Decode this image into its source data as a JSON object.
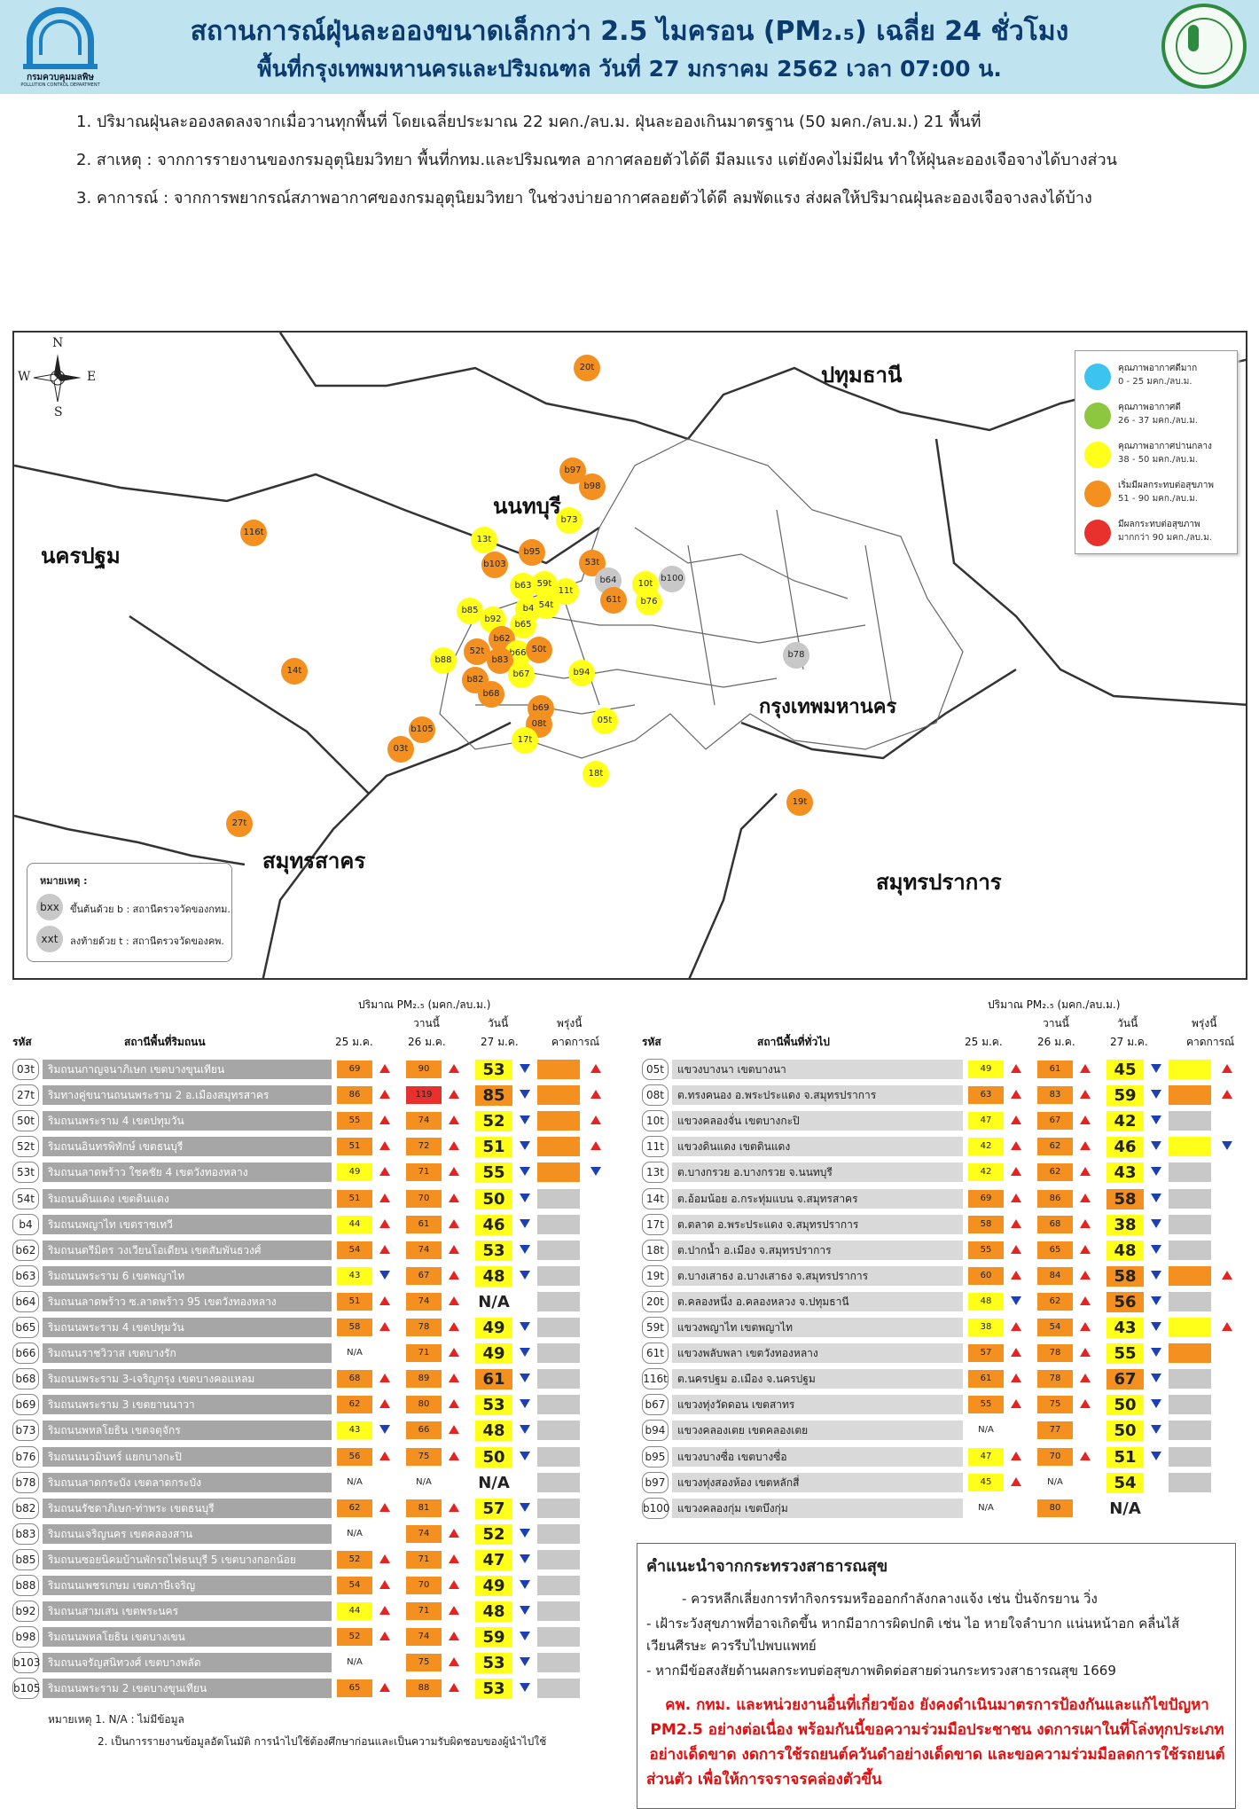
{
  "header": {
    "title_line1": "สถานการณ์ฝุ่นละอองขนาดเล็กกว่า 2.5 ไมครอน (PM₂.₅) เฉลี่ย 24 ชั่วโมง",
    "title_line2": "พื้นที่กรุงเทพมหานครและปริมณฑล วันที่ 27 มกราคม 2562 เวลา 07:00 น.",
    "pcd_logo_name": "กรมควบคุมมลพิษ",
    "pcd_logo_sub": "POLLUTION CONTROL DEPARTMENT"
  },
  "notes": [
    "1. ปริมาณฝุ่นละอองลดลงจากเมื่อวานทุกพื้นที่ โดยเฉลี่ยประมาณ 22 มคก./ลบ.ม. ฝุ่นละอองเกินมาตรฐาน (50 มคก./ลบ.ม.) 21 พื้นที่",
    "2. สาเหตุ : จากการรายงานของกรมอุตุนิยมวิทยา พื้นที่กทม.และปริมณฑล อากาศลอยตัวได้ดี มีลมแรง แต่ยังคงไม่มีฝน ทำให้ฝุ่นละอองเจือจางได้บางส่วน",
    "3. คาการณ์ : จากการพยากรณ์สภาพอากาศของกรมอุตุนิยมวิทยา ในช่วงบ่ายอากาศลอยตัวได้ดี ลมพัดแรง ส่งผลให้ปริมาณฝุ่นละอองเจือจางลงได้บ้าง"
  ],
  "map": {
    "compass": {
      "n": "N",
      "s": "S",
      "e": "E",
      "w": "W"
    },
    "provinces": {
      "pathum": "ปทุมธานี",
      "nonthaburi": "นนทบุรี",
      "nakhonpathom": "นครปฐม",
      "bangkok": "กรุงเทพมหานคร",
      "samutsakhon": "สมุทรสาคร",
      "samutprakan": "สมุทรปราการ"
    },
    "legend": [
      {
        "t1": "คุณภาพอากาศดีมาก",
        "t2": "0 - 25 มคก./ลบ.ม.",
        "color": "#3cc3f0"
      },
      {
        "t1": "คุณภาพอากาศดี",
        "t2": "26 - 37 มคก./ลบ.ม.",
        "color": "#8dc63f"
      },
      {
        "t1": "คุณภาพอากาศปานกลาง",
        "t2": "38 - 50 มคก./ลบ.ม.",
        "color": "#ffff1a"
      },
      {
        "t1": "เริ่มมีผลกระทบต่อสุขภาพ",
        "t2": "51 - 90 มคก./ลบ.ม.",
        "color": "#f4901f"
      },
      {
        "t1": "มีผลกระทบต่อสุขภาพ",
        "t2": "มากกว่า 90 มคก./ลบ.ม.",
        "color": "#e8302c"
      }
    ],
    "notebox": {
      "heading": "หมายเหตุ :",
      "b_icon": "bxx",
      "b_text": "ขึ้นต้นด้วย b : สถานีตรวจวัดของกทม.",
      "t_icon": "xxt",
      "t_text": "ลงท้ายด้วย t : สถานีตรวจวัดของคพ."
    },
    "stations": [
      {
        "id": "20t",
        "level": "O"
      },
      {
        "id": "b97",
        "level": "O"
      },
      {
        "id": "b98",
        "level": "O"
      },
      {
        "id": "b73",
        "level": "Y"
      },
      {
        "id": "116t",
        "level": "O"
      },
      {
        "id": "13t",
        "level": "Y"
      },
      {
        "id": "b95",
        "level": "O"
      },
      {
        "id": "b103",
        "level": "O"
      },
      {
        "id": "53t",
        "level": "O"
      },
      {
        "id": "b64",
        "level": "G"
      },
      {
        "id": "10t",
        "level": "Y"
      },
      {
        "id": "b100",
        "level": "G"
      },
      {
        "id": "b63",
        "level": "Y"
      },
      {
        "id": "59t",
        "level": "Y"
      },
      {
        "id": "11t",
        "level": "Y"
      },
      {
        "id": "61t",
        "level": "O"
      },
      {
        "id": "b76",
        "level": "Y"
      },
      {
        "id": "b85",
        "level": "Y"
      },
      {
        "id": "b4",
        "level": "Y"
      },
      {
        "id": "54t",
        "level": "Y"
      },
      {
        "id": "b92",
        "level": "Y"
      },
      {
        "id": "b65",
        "level": "Y"
      },
      {
        "id": "b62",
        "level": "O"
      },
      {
        "id": "52t",
        "level": "O"
      },
      {
        "id": "b66",
        "level": "Y"
      },
      {
        "id": "50t",
        "level": "O"
      },
      {
        "id": "b88",
        "level": "Y"
      },
      {
        "id": "b83",
        "level": "O"
      },
      {
        "id": "b78",
        "level": "G"
      },
      {
        "id": "b94",
        "level": "Y"
      },
      {
        "id": "b67",
        "level": "Y"
      },
      {
        "id": "14t",
        "level": "O"
      },
      {
        "id": "b82",
        "level": "O"
      },
      {
        "id": "b68",
        "level": "O"
      },
      {
        "id": "b69",
        "level": "O"
      },
      {
        "id": "08t",
        "level": "O"
      },
      {
        "id": "05t",
        "level": "Y"
      },
      {
        "id": "b105",
        "level": "O"
      },
      {
        "id": "17t",
        "level": "Y"
      },
      {
        "id": "03t",
        "level": "O"
      },
      {
        "id": "18t",
        "level": "Y"
      },
      {
        "id": "19t",
        "level": "O"
      },
      {
        "id": "27t",
        "level": "O"
      }
    ]
  },
  "table_header": {
    "amount": "ปริมาณ PM₂.₅ (มคก./ลบ.ม.)",
    "code": "รหัส",
    "left_station": "สถานีพื้นที่ริมถนน",
    "right_station": "สถานีพื้นที่ทั่วไป",
    "d25": "25 ม.ค.",
    "yesterday": "วานนี้",
    "d26": "26 ม.ค.",
    "today": "วันนี้",
    "d27": "27 ม.ค.",
    "tomorrow": "พรุ่งนี้",
    "forecast": "คาดการณ์"
  },
  "left_rows": [
    {
      "code": "03t",
      "name": "ริมถนนกาญจนาภิเษก เขตบางขุนเทียน",
      "v25": "69",
      "c25": "O",
      "t25": "up",
      "v26": "90",
      "c26": "O",
      "t26": "up",
      "v27": "53",
      "c27": "Y",
      "t27": "dn",
      "fc": "O",
      "ft": "up"
    },
    {
      "code": "27t",
      "name": "ริมทางคู่ขนานถนนพระราม 2 อ.เมืองสมุทรสาคร",
      "v25": "86",
      "c25": "O",
      "t25": "up",
      "v26": "119",
      "c26": "R",
      "t26": "up",
      "v27": "85",
      "c27": "O",
      "t27": "dn",
      "fc": "O",
      "ft": "up"
    },
    {
      "code": "50t",
      "name": "ริมถนนพระราม 4 เขตปทุมวัน",
      "v25": "55",
      "c25": "O",
      "t25": "up",
      "v26": "74",
      "c26": "O",
      "t26": "up",
      "v27": "52",
      "c27": "Y",
      "t27": "dn",
      "fc": "O",
      "ft": "up"
    },
    {
      "code": "52t",
      "name": "ริมถนนอินทรพิทักษ์ เขตธนบุรี",
      "v25": "51",
      "c25": "O",
      "t25": "up",
      "v26": "72",
      "c26": "O",
      "t26": "up",
      "v27": "51",
      "c27": "Y",
      "t27": "dn",
      "fc": "O",
      "ft": "up"
    },
    {
      "code": "53t",
      "name": "ริมถนนลาดพร้าว ใชคชัย 4 เขตวังทองหลาง",
      "v25": "49",
      "c25": "Y",
      "t25": "up",
      "v26": "71",
      "c26": "O",
      "t26": "up",
      "v27": "55",
      "c27": "Y",
      "t27": "dn",
      "fc": "O",
      "ft": "dn"
    },
    {
      "code": "54t",
      "name": "ริมถนนดินแดง เขตดินแดง",
      "v25": "51",
      "c25": "O",
      "t25": "up",
      "v26": "70",
      "c26": "O",
      "t26": "up",
      "v27": "50",
      "c27": "Y",
      "t27": "dn",
      "fc": "G",
      "ft": ""
    },
    {
      "code": "b4",
      "name": "ริมถนนพญาไท เขตราชเทวี",
      "v25": "44",
      "c25": "Y",
      "t25": "up",
      "v26": "61",
      "c26": "O",
      "t26": "up",
      "v27": "46",
      "c27": "Y",
      "t27": "dn",
      "fc": "G",
      "ft": ""
    },
    {
      "code": "b62",
      "name": "ริมถนนตรีมิตร วงเวียนโอเดียน เขตสัมพันธวงศ์",
      "v25": "54",
      "c25": "O",
      "t25": "up",
      "v26": "74",
      "c26": "O",
      "t26": "up",
      "v27": "53",
      "c27": "Y",
      "t27": "dn",
      "fc": "G",
      "ft": ""
    },
    {
      "code": "b63",
      "name": "ริมถนนพระราม 6 เขตพญาไท",
      "v25": "43",
      "c25": "Y",
      "t25": "dn",
      "v26": "67",
      "c26": "O",
      "t26": "up",
      "v27": "48",
      "c27": "Y",
      "t27": "dn",
      "fc": "G",
      "ft": ""
    },
    {
      "code": "b64",
      "name": "ริมถนนลาดพร้าว ซ.ลาดพร้าว 95 เขตวังทองหลาง",
      "v25": "51",
      "c25": "O",
      "t25": "up",
      "v26": "74",
      "c26": "O",
      "t26": "up",
      "v27": "N/A",
      "c27": "W",
      "t27": "",
      "fc": "G",
      "ft": ""
    },
    {
      "code": "b65",
      "name": "ริมถนนพระราม 4 เขตปทุมวัน",
      "v25": "58",
      "c25": "O",
      "t25": "up",
      "v26": "78",
      "c26": "O",
      "t26": "up",
      "v27": "49",
      "c27": "Y",
      "t27": "dn",
      "fc": "G",
      "ft": ""
    },
    {
      "code": "b66",
      "name": "ริมถนนราชวิวาส เขตบางรัก",
      "v25": "N/A",
      "c25": "W",
      "t25": "",
      "v26": "71",
      "c26": "O",
      "t26": "up",
      "v27": "49",
      "c27": "Y",
      "t27": "dn",
      "fc": "G",
      "ft": ""
    },
    {
      "code": "b68",
      "name": "ริมถนนพระราม 3-เจริญกรุง เขตบางคอแหลม",
      "v25": "68",
      "c25": "O",
      "t25": "up",
      "v26": "89",
      "c26": "O",
      "t26": "up",
      "v27": "61",
      "c27": "O",
      "t27": "dn",
      "fc": "G",
      "ft": ""
    },
    {
      "code": "b69",
      "name": "ริมถนนพระราม 3 เขตยานนาวา",
      "v25": "62",
      "c25": "O",
      "t25": "up",
      "v26": "80",
      "c26": "O",
      "t26": "up",
      "v27": "53",
      "c27": "Y",
      "t27": "dn",
      "fc": "G",
      "ft": ""
    },
    {
      "code": "b73",
      "name": "ริมถนนพหลโยธิน เขตจตุจักร",
      "v25": "43",
      "c25": "Y",
      "t25": "dn",
      "v26": "66",
      "c26": "O",
      "t26": "up",
      "v27": "48",
      "c27": "Y",
      "t27": "dn",
      "fc": "G",
      "ft": ""
    },
    {
      "code": "b76",
      "name": "ริมถนนนวมินทร์ แยกบางกะปิ",
      "v25": "56",
      "c25": "O",
      "t25": "up",
      "v26": "75",
      "c26": "O",
      "t26": "up",
      "v27": "50",
      "c27": "Y",
      "t27": "dn",
      "fc": "G",
      "ft": ""
    },
    {
      "code": "b78",
      "name": "ริมถนนลาดกระบัง เขตลาดกระบัง",
      "v25": "N/A",
      "c25": "W",
      "t25": "",
      "v26": "N/A",
      "c26": "W",
      "t26": "",
      "v27": "N/A",
      "c27": "W",
      "t27": "",
      "fc": "G",
      "ft": ""
    },
    {
      "code": "b82",
      "name": "ริมถนนรัชดาภิเษก-ท่าพระ เขตธนบุรี",
      "v25": "62",
      "c25": "O",
      "t25": "up",
      "v26": "81",
      "c26": "O",
      "t26": "up",
      "v27": "57",
      "c27": "Y",
      "t27": "dn",
      "fc": "G",
      "ft": ""
    },
    {
      "code": "b83",
      "name": "ริมถนนเจริญนคร เขตคลองสาน",
      "v25": "N/A",
      "c25": "W",
      "t25": "",
      "v26": "74",
      "c26": "O",
      "t26": "up",
      "v27": "52",
      "c27": "Y",
      "t27": "dn",
      "fc": "G",
      "ft": ""
    },
    {
      "code": "b85",
      "name": "ริมถนนซอยนิคมบ้านพักรถไฟธนบุรี 5 เขตบางกอกน้อย",
      "v25": "52",
      "c25": "O",
      "t25": "up",
      "v26": "71",
      "c26": "O",
      "t26": "up",
      "v27": "47",
      "c27": "Y",
      "t27": "dn",
      "fc": "G",
      "ft": ""
    },
    {
      "code": "b88",
      "name": "ริมถนนเพชรเกษม เขตภาษีเจริญ",
      "v25": "54",
      "c25": "O",
      "t25": "up",
      "v26": "70",
      "c26": "O",
      "t26": "up",
      "v27": "49",
      "c27": "Y",
      "t27": "dn",
      "fc": "G",
      "ft": ""
    },
    {
      "code": "b92",
      "name": "ริมถนนสามเสน เขตพระนคร",
      "v25": "44",
      "c25": "Y",
      "t25": "up",
      "v26": "71",
      "c26": "O",
      "t26": "up",
      "v27": "48",
      "c27": "Y",
      "t27": "dn",
      "fc": "G",
      "ft": ""
    },
    {
      "code": "b98",
      "name": "ริมถนนพหลโยธิน เขตบางเขน",
      "v25": "52",
      "c25": "O",
      "t25": "up",
      "v26": "74",
      "c26": "O",
      "t26": "up",
      "v27": "59",
      "c27": "Y",
      "t27": "dn",
      "fc": "G",
      "ft": ""
    },
    {
      "code": "b103",
      "name": "ริมถนนจรัญสนิทวงศ์ เขตบางพลัด",
      "v25": "N/A",
      "c25": "W",
      "t25": "",
      "v26": "75",
      "c26": "O",
      "t26": "up",
      "v27": "53",
      "c27": "Y",
      "t27": "dn",
      "fc": "G",
      "ft": ""
    },
    {
      "code": "b105",
      "name": "ริมถนนพระราม 2 เขตบางขุนเทียน",
      "v25": "65",
      "c25": "O",
      "t25": "up",
      "v26": "88",
      "c26": "O",
      "t26": "up",
      "v27": "53",
      "c27": "Y",
      "t27": "dn",
      "fc": "G",
      "ft": ""
    }
  ],
  "right_rows": [
    {
      "code": "05t",
      "name": "แขวงบางนา เขตบางนา",
      "v25": "49",
      "c25": "Y",
      "t25": "up",
      "v26": "61",
      "c26": "O",
      "t26": "up",
      "v27": "45",
      "c27": "Y",
      "t27": "dn",
      "fc": "Y",
      "ft": "up"
    },
    {
      "code": "08t",
      "name": "ต.ทรงคนอง อ.พระประแดง จ.สมุทรปราการ",
      "v25": "63",
      "c25": "O",
      "t25": "up",
      "v26": "83",
      "c26": "O",
      "t26": "up",
      "v27": "59",
      "c27": "Y",
      "t27": "dn",
      "fc": "O",
      "ft": "up"
    },
    {
      "code": "10t",
      "name": "แขวงคลองจั่น เขตบางกะปิ",
      "v25": "47",
      "c25": "Y",
      "t25": "up",
      "v26": "67",
      "c26": "O",
      "t26": "up",
      "v27": "42",
      "c27": "Y",
      "t27": "dn",
      "fc": "G",
      "ft": ""
    },
    {
      "code": "11t",
      "name": "แขวงดินแดง เขตดินแดง",
      "v25": "42",
      "c25": "Y",
      "t25": "up",
      "v26": "62",
      "c26": "O",
      "t26": "up",
      "v27": "46",
      "c27": "Y",
      "t27": "dn",
      "fc": "Y",
      "ft": "dn"
    },
    {
      "code": "13t",
      "name": "ต.บางกรวย อ.บางกรวย จ.นนทบุรี",
      "v25": "42",
      "c25": "Y",
      "t25": "up",
      "v26": "62",
      "c26": "O",
      "t26": "up",
      "v27": "43",
      "c27": "Y",
      "t27": "dn",
      "fc": "G",
      "ft": ""
    },
    {
      "code": "14t",
      "name": "ต.อ้อมน้อย อ.กระทุ่มแบน จ.สมุทรสาคร",
      "v25": "69",
      "c25": "O",
      "t25": "up",
      "v26": "86",
      "c26": "O",
      "t26": "up",
      "v27": "58",
      "c27": "O",
      "t27": "dn",
      "fc": "G",
      "ft": ""
    },
    {
      "code": "17t",
      "name": "ต.ตลาด อ.พระประแดง จ.สมุทรปราการ",
      "v25": "58",
      "c25": "O",
      "t25": "up",
      "v26": "68",
      "c26": "O",
      "t26": "up",
      "v27": "38",
      "c27": "Y",
      "t27": "dn",
      "fc": "G",
      "ft": ""
    },
    {
      "code": "18t",
      "name": "ต.ปากน้ำ อ.เมือง จ.สมุทรปราการ",
      "v25": "55",
      "c25": "O",
      "t25": "up",
      "v26": "65",
      "c26": "O",
      "t26": "up",
      "v27": "48",
      "c27": "Y",
      "t27": "dn",
      "fc": "G",
      "ft": ""
    },
    {
      "code": "19t",
      "name": "ต.บางเสาธง อ.บางเสาธง จ.สมุทรปราการ",
      "v25": "60",
      "c25": "O",
      "t25": "up",
      "v26": "84",
      "c26": "O",
      "t26": "up",
      "v27": "58",
      "c27": "O",
      "t27": "dn",
      "fc": "O",
      "ft": "up"
    },
    {
      "code": "20t",
      "name": "ต.คลองหนึ่ง อ.คลองหลวง จ.ปทุมธานี",
      "v25": "48",
      "c25": "Y",
      "t25": "dn",
      "v26": "62",
      "c26": "O",
      "t26": "up",
      "v27": "56",
      "c27": "O",
      "t27": "dn",
      "fc": "G",
      "ft": ""
    },
    {
      "code": "59t",
      "name": "แขวงพญาไท เขตพญาไท",
      "v25": "38",
      "c25": "Y",
      "t25": "up",
      "v26": "54",
      "c26": "O",
      "t26": "up",
      "v27": "43",
      "c27": "Y",
      "t27": "dn",
      "fc": "Y",
      "ft": "up"
    },
    {
      "code": "61t",
      "name": "แขวงพลับพลา เขตวังทองหลาง",
      "v25": "57",
      "c25": "O",
      "t25": "up",
      "v26": "78",
      "c26": "O",
      "t26": "up",
      "v27": "55",
      "c27": "Y",
      "t27": "dn",
      "fc": "O",
      "ft": ""
    },
    {
      "code": "116t",
      "name": "ต.นครปฐม อ.เมือง จ.นครปฐม",
      "v25": "61",
      "c25": "O",
      "t25": "up",
      "v26": "78",
      "c26": "O",
      "t26": "up",
      "v27": "67",
      "c27": "O",
      "t27": "dn",
      "fc": "G",
      "ft": ""
    },
    {
      "code": "b67",
      "name": "แขวงทุ่งวัดดอน เขตสาทร",
      "v25": "55",
      "c25": "O",
      "t25": "up",
      "v26": "75",
      "c26": "O",
      "t26": "up",
      "v27": "50",
      "c27": "Y",
      "t27": "dn",
      "fc": "G",
      "ft": ""
    },
    {
      "code": "b94",
      "name": "แขวงคลองเตย เขตคลองเตย",
      "v25": "N/A",
      "c25": "W",
      "t25": "",
      "v26": "77",
      "c26": "O",
      "t26": "",
      "v27": "50",
      "c27": "Y",
      "t27": "dn",
      "fc": "G",
      "ft": ""
    },
    {
      "code": "b95",
      "name": "แขวงบางซื่อ เขตบางซื่อ",
      "v25": "47",
      "c25": "Y",
      "t25": "up",
      "v26": "70",
      "c26": "O",
      "t26": "up",
      "v27": "51",
      "c27": "Y",
      "t27": "dn",
      "fc": "G",
      "ft": ""
    },
    {
      "code": "b97",
      "name": "แขวงทุ่งสองห้อง เขตหลักสี่",
      "v25": "45",
      "c25": "Y",
      "t25": "up",
      "v26": "N/A",
      "c26": "W",
      "t26": "",
      "v27": "54",
      "c27": "Y",
      "t27": "",
      "fc": "G",
      "ft": ""
    },
    {
      "code": "b100",
      "name": "แขวงคลองกุ่ม เขตบึงกุ่ม",
      "v25": "N/A",
      "c25": "W",
      "t25": "",
      "v26": "80",
      "c26": "O",
      "t26": "",
      "v27": "N/A",
      "c27": "W",
      "t27": "",
      "fc": "W",
      "ft": ""
    }
  ],
  "footnote": {
    "line1": "หมายเหตุ 1. N/A : ไม่มีข้อมูล",
    "line2": "2. เป็นการรายงานข้อมูลอัตโนมัติ การนำไปใช้ต้องศึกษาก่อนและเป็นความรับผิดชอบของผู้นำไปใช้"
  },
  "advice": {
    "heading": "คำแนะนำจากกระทรวงสาธารณสุข",
    "items": [
      "- ควรหลีกเลี่ยงการทำกิจกรรมหรือออกกำลังกลางแจ้ง เช่น ปั่นจักรยาน วิ่ง",
      "- เฝ้าระวังสุขภาพที่อาจเกิดขึ้น หากมีอาการผิดปกติ เช่น ไอ หายใจลำบาก แน่นหน้าอก คลื่นไส้",
      "เวียนศีรษะ ควรรีบไปพบแพทย์",
      "- หากมีข้อสงสัยด้านผลกระทบต่อสุขภาพติดต่อสายด่วนกระทรวงสาธารณสุข 1669"
    ],
    "red": [
      "คพ. กทม. และหน่วยงานอื่นที่เกี่ยวข้อง ยังคงดำเนินมาตรการป้องกันและแก้ไขปัญหา",
      "PM2.5 อย่างต่อเนื่อง พร้อมกันนี้ขอความร่วมมือประชาชน งดการเผาในที่โล่งทุกประเภท",
      "อย่างเด็ดขาด งดการใช้รถยนต์ควันดำอย่างเด็ดขาด และขอความร่วมมือลดการใช้รถยนต์",
      "ส่วนตัว เพื่อให้การจราจรคล่องตัวขึ้น"
    ]
  }
}
